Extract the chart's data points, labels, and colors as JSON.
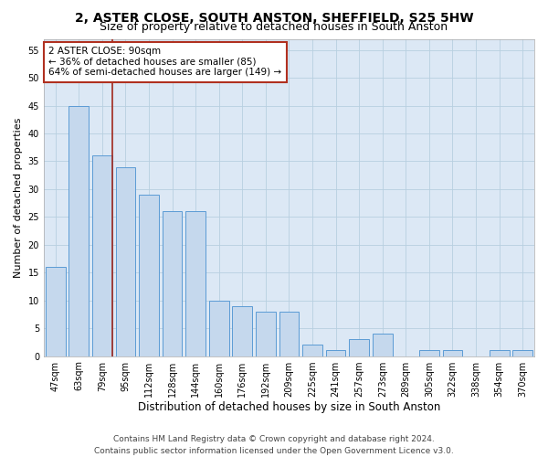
{
  "title": "2, ASTER CLOSE, SOUTH ANSTON, SHEFFIELD, S25 5HW",
  "subtitle": "Size of property relative to detached houses in South Anston",
  "xlabel": "Distribution of detached houses by size in South Anston",
  "ylabel": "Number of detached properties",
  "categories": [
    "47sqm",
    "63sqm",
    "79sqm",
    "95sqm",
    "112sqm",
    "128sqm",
    "144sqm",
    "160sqm",
    "176sqm",
    "192sqm",
    "209sqm",
    "225sqm",
    "241sqm",
    "257sqm",
    "273sqm",
    "289sqm",
    "305sqm",
    "322sqm",
    "338sqm",
    "354sqm",
    "370sqm"
  ],
  "values": [
    16,
    45,
    36,
    34,
    29,
    26,
    26,
    10,
    9,
    8,
    8,
    2,
    1,
    3,
    4,
    0,
    1,
    1,
    0,
    1,
    1
  ],
  "bar_color": "#c5d8ed",
  "bar_edge_color": "#5b9bd5",
  "ylim": [
    0,
    57
  ],
  "yticks": [
    0,
    5,
    10,
    15,
    20,
    25,
    30,
    35,
    40,
    45,
    50,
    55
  ],
  "property_bar_index": 2,
  "vline_color": "#a0281e",
  "annotation_line1": "2 ASTER CLOSE: 90sqm",
  "annotation_line2": "← 36% of detached houses are smaller (85)",
  "annotation_line3": "64% of semi-detached houses are larger (149) →",
  "annotation_box_color": "#ffffff",
  "annotation_box_edge_color": "#b03020",
  "footer_line1": "Contains HM Land Registry data © Crown copyright and database right 2024.",
  "footer_line2": "Contains public sector information licensed under the Open Government Licence v3.0.",
  "background_color": "#ffffff",
  "plot_bg_color": "#dce8f5",
  "grid_color": "#b8cfe0",
  "title_fontsize": 10,
  "subtitle_fontsize": 9,
  "tick_fontsize": 7,
  "ylabel_fontsize": 8,
  "xlabel_fontsize": 8.5,
  "footer_fontsize": 6.5,
  "annotation_fontsize": 7.5
}
